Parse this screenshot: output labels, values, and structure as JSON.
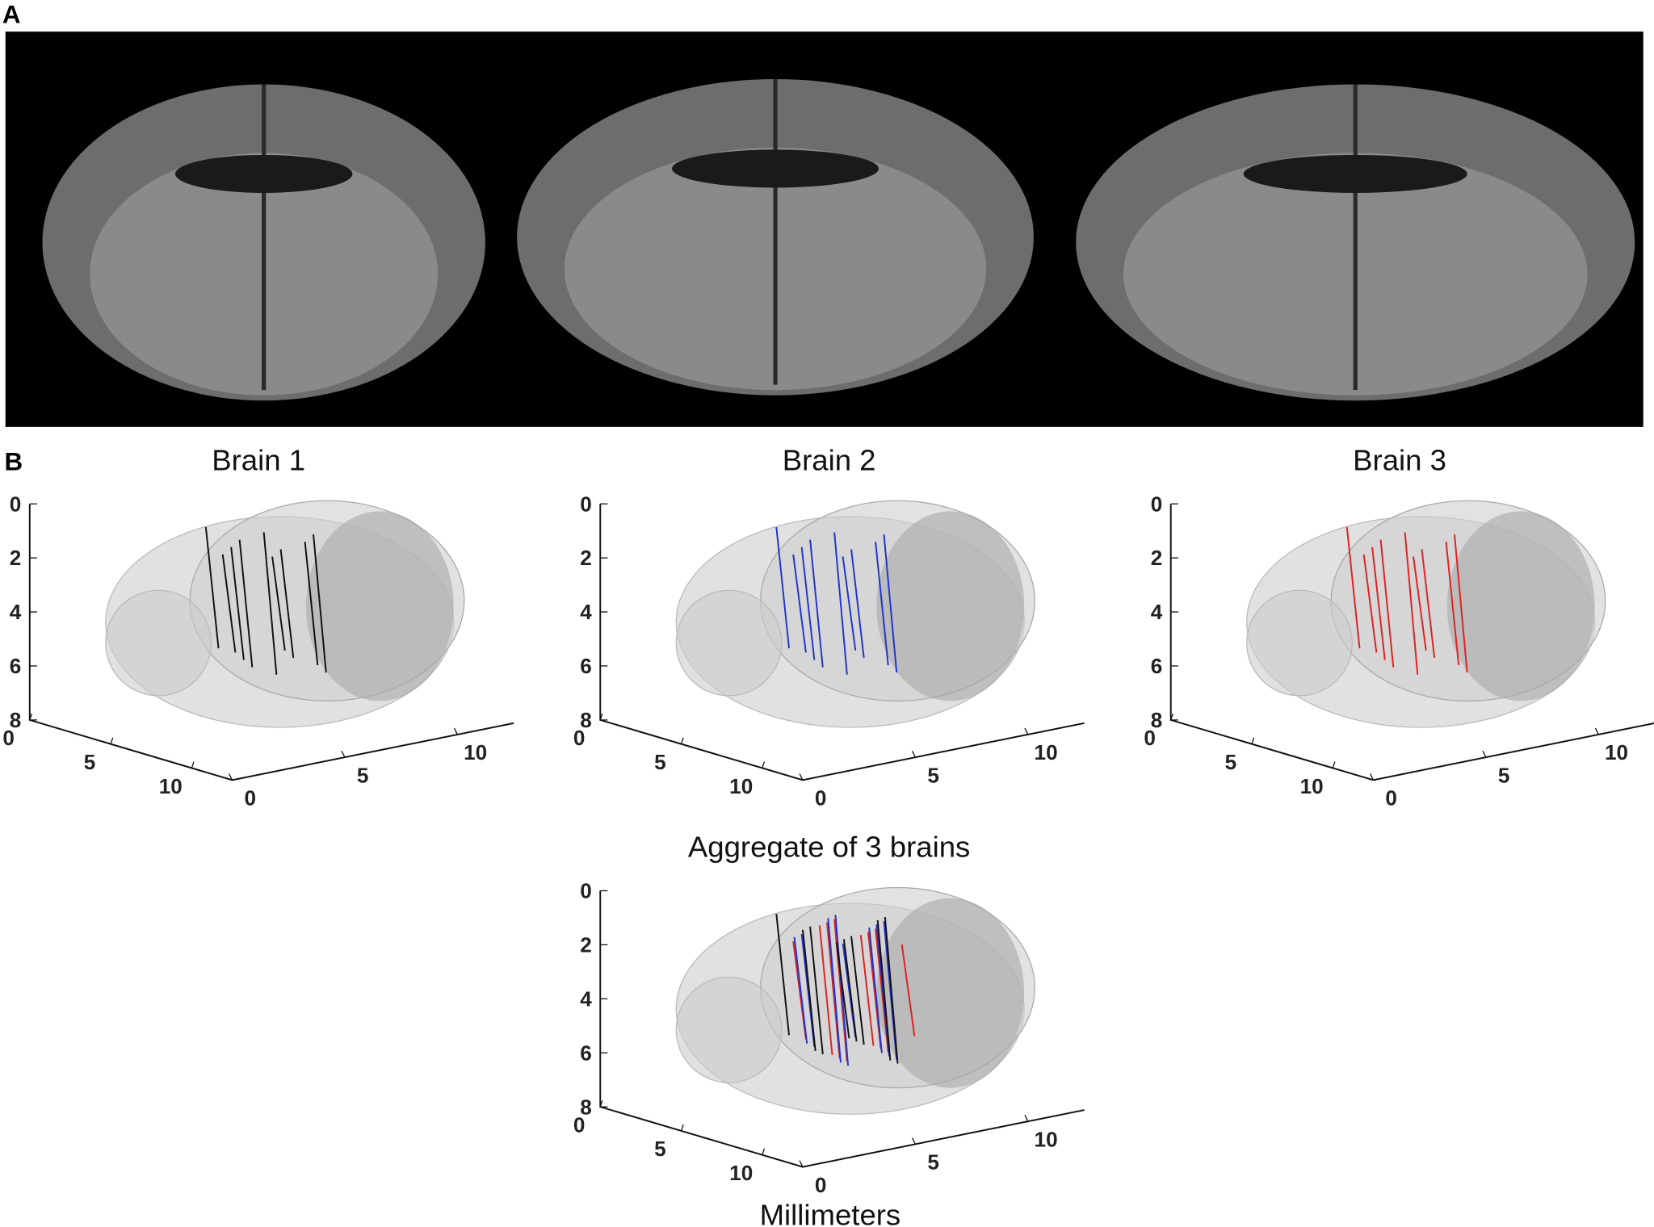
{
  "panels": [
    {
      "label": "A"
    },
    {
      "label": "B"
    }
  ],
  "plots": [
    {
      "title": "Brain 1",
      "z_ticks": [
        "0",
        "2",
        "4",
        "6",
        "8"
      ],
      "x_ticks": [
        "0",
        "5",
        "10"
      ],
      "y_ticks": [
        "0",
        "5",
        "10"
      ]
    },
    {
      "title": "Brain 2",
      "z_ticks": [
        "0",
        "2",
        "4",
        "6",
        "8"
      ],
      "x_ticks": [
        "0",
        "5",
        "10"
      ],
      "y_ticks": [
        "0",
        "5",
        "10"
      ]
    },
    {
      "title": "Brain 3",
      "z_ticks": [
        "0",
        "2",
        "4",
        "6",
        "8"
      ],
      "x_ticks": [
        "0",
        "5",
        "10"
      ],
      "y_ticks": [
        "0",
        "5",
        "10"
      ]
    },
    {
      "title": "Aggregate of 3 brains",
      "z_ticks": [
        "0",
        "2",
        "4",
        "6",
        "8"
      ],
      "x_ticks": [
        "0",
        "5",
        "10"
      ],
      "y_ticks": [
        "0",
        "5",
        "10"
      ]
    }
  ],
  "axis_label": "Millimeters"
}
